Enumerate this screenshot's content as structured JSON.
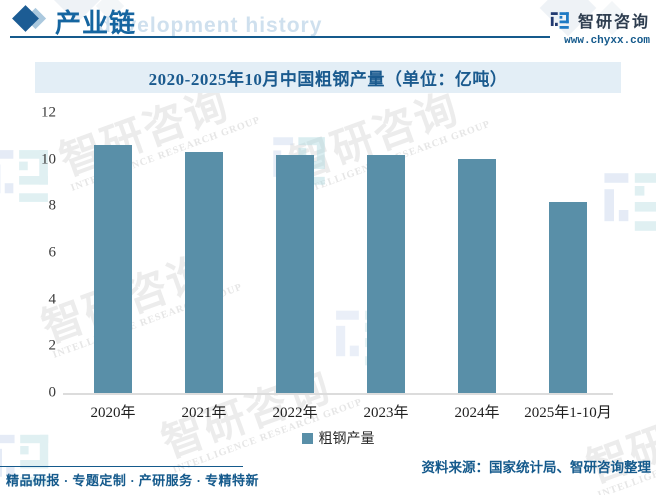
{
  "header": {
    "section_title": "产业链",
    "background_watermark_text": "development history",
    "brand": {
      "name": "智研咨询",
      "site": "www.chyxx.com"
    }
  },
  "chart_data": {
    "type": "bar",
    "title": "2020-2025年10月中国粗钢产量（单位：亿吨）",
    "categories": [
      "2020年",
      "2021年",
      "2022年",
      "2023年",
      "2024年",
      "2025年1-10月"
    ],
    "series": [
      {
        "name": "粗钢产量",
        "values": [
          10.65,
          10.35,
          10.18,
          10.19,
          10.05,
          8.17
        ]
      }
    ],
    "xlabel": "",
    "ylabel": "",
    "ylim": [
      0,
      12
    ],
    "yticks": [
      0,
      2,
      4,
      6,
      8,
      10,
      12
    ],
    "grid": false,
    "legend_position": "bottom",
    "bar_color": "#598fa8"
  },
  "watermark": {
    "cn_text": "智研咨询",
    "en_text": "INTELLIGENCE RESEARCH GROUP"
  },
  "footer": {
    "tagline": "精品研报 · 专题定制 · 产研服务 · 专精特新",
    "source": "资料来源：国家统计局、智研咨询整理"
  },
  "colors": {
    "accent_blue": "#155a8c",
    "bar_blue": "#598fa8",
    "title_strip_bg": "#e3eef6",
    "logo_dark": "#223a70",
    "logo_light": "#1e7ac4"
  }
}
